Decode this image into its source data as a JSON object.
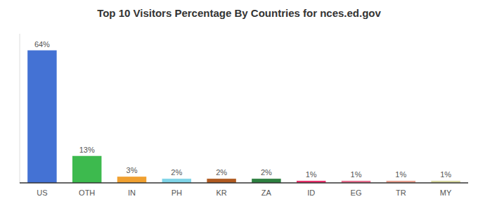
{
  "chart_data": {
    "type": "bar",
    "title": "Top 10 Visitors Percentage By Countries for nces.ed.gov",
    "categories": [
      "US",
      "OTH",
      "IN",
      "PH",
      "KR",
      "ZA",
      "ID",
      "EG",
      "TR",
      "MY"
    ],
    "values": [
      64,
      13,
      3,
      2,
      2,
      2,
      1,
      1,
      1,
      1
    ],
    "value_labels": [
      "64%",
      "13%",
      "3%",
      "2%",
      "2%",
      "2%",
      "1%",
      "1%",
      "1%",
      "1%"
    ],
    "colors": [
      "#4472d4",
      "#3dba4e",
      "#f0a030",
      "#7fd4e8",
      "#b05a20",
      "#2d8040",
      "#e8306a",
      "#e87090",
      "#e8a090",
      "#d8d8a0"
    ],
    "ylim": [
      0,
      72
    ],
    "data_labels": true,
    "tick_labels": "x",
    "grid": false
  }
}
